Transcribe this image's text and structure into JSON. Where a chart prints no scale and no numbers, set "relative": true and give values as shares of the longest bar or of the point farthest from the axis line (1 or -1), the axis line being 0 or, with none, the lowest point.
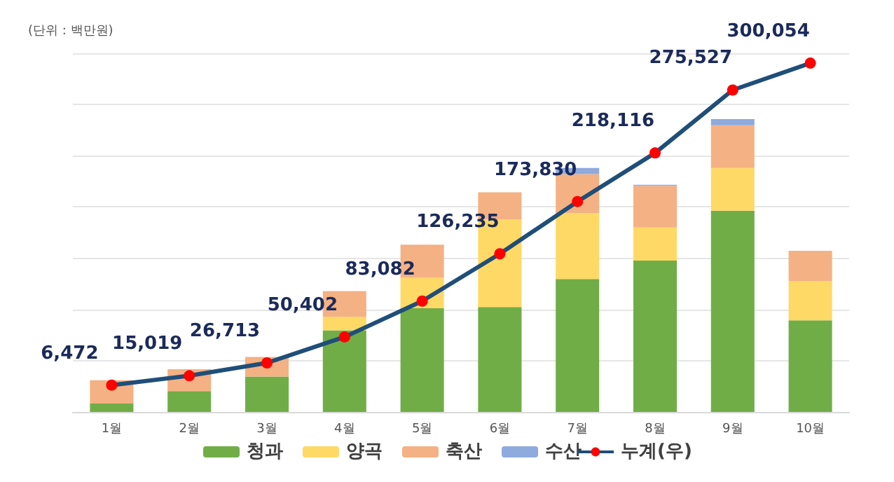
{
  "chart_data": [
    {
      "type": "bar",
      "stacked": true,
      "relative": true,
      "categories": [
        null,
        null,
        null,
        null,
        null,
        null,
        null,
        null,
        null,
        null
      ],
      "series": [
        {
          "name": "청과",
          "color": "#70ad47",
          "values": [
            0.029,
            0.071,
            0.121,
            0.279,
            0.354,
            0.358,
            0.454,
            0.517,
            0.687,
            0.313
          ]
        },
        {
          "name": "양곡",
          "color": "#ffd966",
          "values": [
            0,
            0,
            0,
            0.046,
            0.104,
            0.3,
            0.225,
            0.113,
            0.146,
            0.133
          ]
        },
        {
          "name": "축산",
          "color": "#f4b183",
          "values": [
            0.079,
            0.075,
            0.067,
            0.088,
            0.113,
            0.092,
            0.133,
            0.142,
            0.146,
            0.104
          ]
        },
        {
          "name": "수산",
          "color": "#8faadc",
          "values": [
            0,
            0,
            0,
            0,
            0,
            0,
            0.021,
            0.004,
            0.021,
            0
          ]
        }
      ],
      "annotations": [
        "(단위 : 백만원)"
      ],
      "grid": "y",
      "legend": "bottom"
    },
    {
      "type": "line",
      "categories": [
        "1월",
        "2월",
        "3월",
        "4월",
        "5월",
        "6월",
        "7월",
        "8월",
        "9월",
        "10월"
      ],
      "marker": "circle",
      "legend": "bottom",
      "series": [
        {
          "name": "누계(우)",
          "axis": "y2",
          "color": "#1f4e79",
          "values": [
            6472,
            15019,
            26713,
            50402,
            83082,
            126235,
            173830,
            218116,
            275527,
            300054
          ],
          "value_labels": [
            "6,472",
            "15,019",
            "26,713",
            "50,402",
            "83,082",
            "126,235",
            "173,830",
            "218,116",
            "275,527",
            "300,054"
          ]
        }
      ]
    }
  ]
}
